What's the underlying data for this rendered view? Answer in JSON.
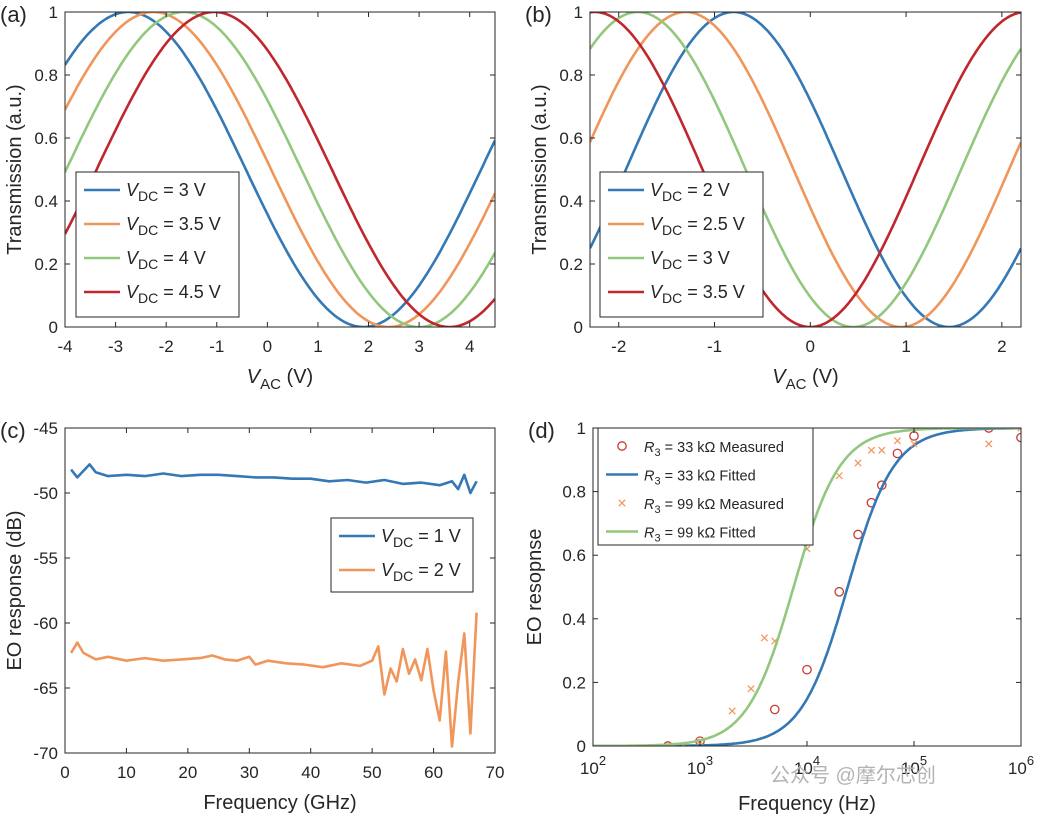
{
  "watermark": "公众号 @摩尔芯创",
  "chart_data": [
    {
      "type": "line",
      "panel": "(a)",
      "xlabel": "V",
      "xlabel_sub": "AC",
      "xlabel_unit": " (V)",
      "ylabel": "Transmission (a.u.)",
      "xlim": [
        -4,
        4.5
      ],
      "ylim": [
        0,
        1
      ],
      "xticks": [
        -4,
        -3,
        -2,
        -1,
        0,
        1,
        2,
        3,
        4
      ],
      "yticks": [
        0,
        0.2,
        0.4,
        0.6,
        0.8,
        1
      ],
      "legend_position": "bottom-left",
      "model": {
        "form": "cos2",
        "period": 9.3
      },
      "series": [
        {
          "legend_v": "V",
          "legend_sub": "DC",
          "legend_rest": " = 3 V",
          "color": "#3478b5",
          "peak": -2.75
        },
        {
          "legend_v": "V",
          "legend_sub": "DC",
          "legend_rest": " = 3.5 V",
          "color": "#f0965a",
          "peak": -2.25
        },
        {
          "legend_v": "V",
          "legend_sub": "DC",
          "legend_rest": " = 4 V",
          "color": "#92c77e",
          "peak": -1.65
        },
        {
          "legend_v": "V",
          "legend_sub": "DC",
          "legend_rest": " = 4.5 V",
          "color": "#c0272d",
          "peak": -1.05
        }
      ]
    },
    {
      "type": "line",
      "panel": "(b)",
      "xlabel": "V",
      "xlabel_sub": "AC",
      "xlabel_unit": " (V)",
      "ylabel": "Transmission (a.u.)",
      "xlim": [
        -2.3,
        2.2
      ],
      "ylim": [
        0,
        1
      ],
      "xticks": [
        -2,
        -1,
        0,
        1,
        2
      ],
      "yticks": [
        0,
        0.2,
        0.4,
        0.6,
        0.8,
        1
      ],
      "legend_position": "bottom-left",
      "model": {
        "form": "cos2",
        "period": 4.5
      },
      "series": [
        {
          "legend_v": "V",
          "legend_sub": "DC",
          "legend_rest": " = 2 V",
          "color": "#3478b5",
          "peak": -0.8
        },
        {
          "legend_v": "V",
          "legend_sub": "DC",
          "legend_rest": " = 2.5 V",
          "color": "#f0965a",
          "peak": -1.3
        },
        {
          "legend_v": "V",
          "legend_sub": "DC",
          "legend_rest": " = 3 V",
          "color": "#92c77e",
          "peak": -1.8
        },
        {
          "legend_v": "V",
          "legend_sub": "DC",
          "legend_rest": " = 3.5 V",
          "color": "#c0272d",
          "peak": -2.25
        }
      ]
    },
    {
      "type": "line",
      "panel": "(c)",
      "xlabel": "Frequency (GHz)",
      "ylabel": "EO response (dB)",
      "xlim": [
        0,
        70
      ],
      "ylim": [
        -70,
        -45
      ],
      "xticks": [
        0,
        10,
        20,
        30,
        40,
        50,
        60,
        70
      ],
      "yticks": [
        -70,
        -65,
        -60,
        -55,
        -50,
        -45
      ],
      "legend_position": "right",
      "series": [
        {
          "legend_v": "V",
          "legend_sub": "DC",
          "legend_rest": " = 1 V",
          "color": "#3478b5",
          "x": [
            1,
            2,
            3,
            4,
            5,
            7,
            10,
            13,
            16,
            19,
            22,
            25,
            28,
            31,
            34,
            37,
            40,
            43,
            46,
            49,
            52,
            55,
            58,
            61,
            63,
            64,
            65,
            66,
            67
          ],
          "y": [
            -48.2,
            -48.8,
            -48.3,
            -47.8,
            -48.4,
            -48.7,
            -48.6,
            -48.7,
            -48.5,
            -48.7,
            -48.6,
            -48.6,
            -48.7,
            -48.8,
            -48.8,
            -48.9,
            -48.9,
            -49.1,
            -49.0,
            -49.2,
            -49.0,
            -49.3,
            -49.2,
            -49.4,
            -49.1,
            -49.7,
            -48.6,
            -50.0,
            -49.1
          ]
        },
        {
          "legend_v": "V",
          "legend_sub": "DC",
          "legend_rest": " = 2 V",
          "color": "#f0965a",
          "x": [
            1,
            2,
            3,
            5,
            7,
            10,
            13,
            16,
            19,
            22,
            24,
            26,
            28,
            30,
            31,
            33,
            36,
            39,
            42,
            45,
            48,
            50,
            51,
            52,
            53,
            54,
            55,
            56,
            57,
            58,
            59,
            60,
            61,
            62,
            63,
            64,
            65,
            66,
            67
          ],
          "y": [
            -62.3,
            -61.5,
            -62.3,
            -62.8,
            -62.6,
            -62.9,
            -62.7,
            -62.9,
            -62.8,
            -62.7,
            -62.5,
            -62.8,
            -62.9,
            -62.6,
            -63.2,
            -62.9,
            -63.1,
            -63.2,
            -63.4,
            -63.1,
            -63.3,
            -62.9,
            -61.8,
            -65.5,
            -63.5,
            -64.5,
            -62.0,
            -63.9,
            -62.8,
            -64.4,
            -62.0,
            -65.2,
            -67.5,
            -62.2,
            -69.5,
            -64.6,
            -60.8,
            -68.5,
            -59.2
          ]
        }
      ]
    },
    {
      "type": "scatter",
      "panel": "(d)",
      "xlabel": "Frequency (Hz)",
      "ylabel": "EO resopnse",
      "xscale": "log",
      "xlim": [
        100,
        1000000
      ],
      "ylim": [
        0,
        1
      ],
      "xticks": [
        100,
        1000,
        10000,
        100000,
        1000000
      ],
      "xtick_mantissa": "10",
      "xtick_exponents": [
        "2",
        "3",
        "4",
        "5",
        "6"
      ],
      "yticks": [
        0,
        0.2,
        0.4,
        0.6,
        0.8,
        1
      ],
      "legend_position": "top-left",
      "model": {
        "form": "x^2/(x^2+fc^2)"
      },
      "series": [
        {
          "legend_v": "R",
          "legend_sub": "3",
          "legend_rest": " = 33 kΩ Measured",
          "color": "#c73b35",
          "marker": "circle",
          "x": [
            500,
            1000,
            5000,
            10000,
            20000,
            30000,
            40000,
            50000,
            70000,
            100000,
            500000,
            1000000
          ],
          "y": [
            0.0,
            0.015,
            0.115,
            0.24,
            0.485,
            0.665,
            0.765,
            0.82,
            0.92,
            0.975,
            1.0,
            0.97
          ]
        },
        {
          "legend_v": "R",
          "legend_sub": "3",
          "legend_rest": " = 33 kΩ Fitted",
          "color": "#3478b5",
          "marker": "line",
          "fc": 24000
        },
        {
          "legend_v": "R",
          "legend_sub": "3",
          "legend_rest": " = 99 kΩ Measured",
          "color": "#f0965a",
          "marker": "x",
          "x": [
            700,
            1000,
            2000,
            3000,
            4000,
            5000,
            10000,
            20000,
            30000,
            40000,
            50000,
            70000,
            100000,
            500000,
            1000000
          ],
          "y": [
            0.0,
            0.015,
            0.11,
            0.18,
            0.34,
            0.33,
            0.62,
            0.85,
            0.89,
            0.93,
            0.93,
            0.96,
            0.95,
            0.95,
            1.0
          ]
        },
        {
          "legend_v": "R",
          "legend_sub": "3",
          "legend_rest": " = 99 kΩ Fitted",
          "color": "#92c77e",
          "marker": "line",
          "fc": 7500
        }
      ]
    }
  ]
}
